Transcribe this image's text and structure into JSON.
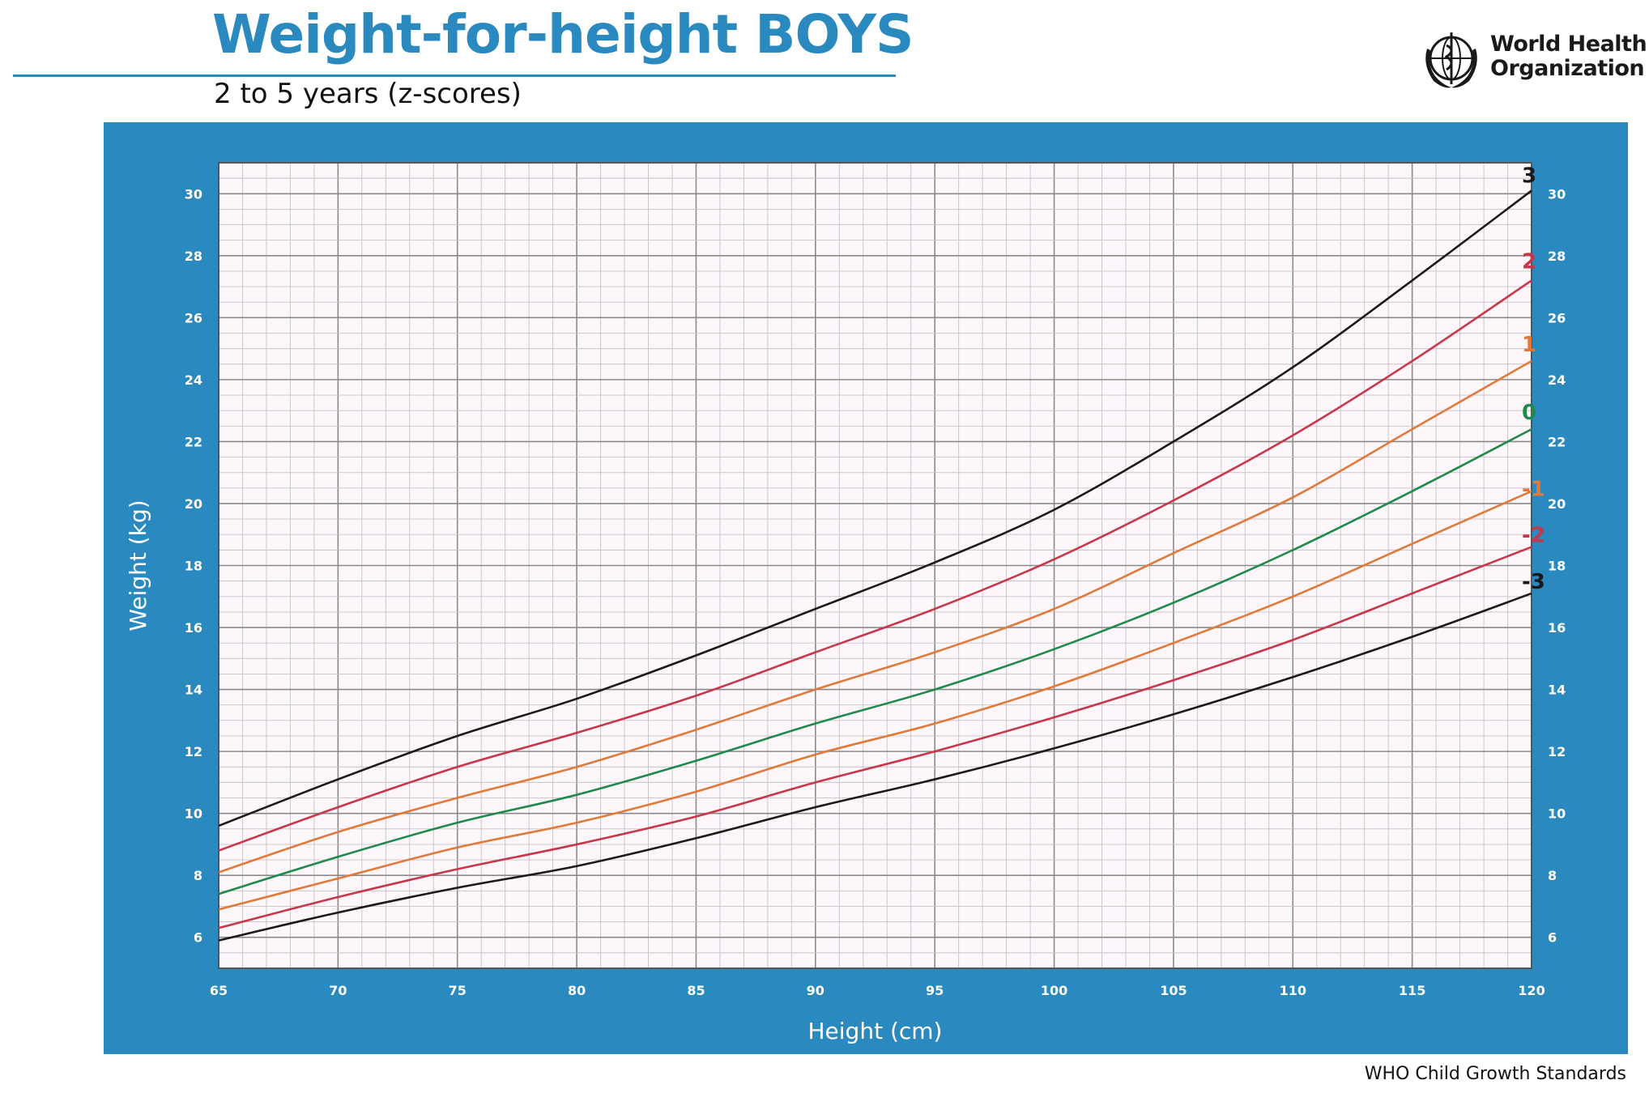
{
  "header": {
    "title": "Weight-for-height BOYS",
    "subtitle": "2 to 5 years (z-scores)",
    "logo_text_line1": "World Health",
    "logo_text_line2": "Organization",
    "logo_icon": "who-emblem-icon"
  },
  "footer": {
    "text": "WHO Child Growth Standards"
  },
  "colors": {
    "brand_blue": "#2a8ac0",
    "plot_background": "#fdf7fb",
    "z3": "#1a1a1a",
    "z2": "#c8364a",
    "z1": "#e07a3a",
    "z0": "#1f8a4c",
    "zm1": "#e07a3a",
    "zm2": "#c8364a",
    "zm3": "#1a1a1a"
  },
  "chart_data": {
    "type": "line",
    "title": "Weight-for-height BOYS",
    "subtitle": "2 to 5 years (z-scores)",
    "xlabel": "Height (cm)",
    "ylabel": "Weight (kg)",
    "xlim": [
      65,
      120
    ],
    "ylim": [
      5,
      31
    ],
    "x_ticks": [
      65,
      70,
      75,
      80,
      85,
      90,
      95,
      100,
      105,
      110,
      115,
      120
    ],
    "y_ticks": [
      6,
      8,
      10,
      12,
      14,
      16,
      18,
      20,
      22,
      24,
      26,
      28,
      30
    ],
    "grid": true,
    "y_axis_both_sides": true,
    "series_labels_position": "right-end",
    "x": [
      65,
      70,
      75,
      80,
      85,
      90,
      95,
      100,
      105,
      110,
      115,
      120
    ],
    "series": [
      {
        "name": "3",
        "color": "#1a1a1a",
        "values": [
          9.6,
          11.1,
          12.5,
          13.7,
          15.1,
          16.6,
          18.1,
          19.8,
          22.0,
          24.4,
          27.2,
          30.1
        ]
      },
      {
        "name": "2",
        "color": "#c8364a",
        "values": [
          8.8,
          10.2,
          11.5,
          12.6,
          13.8,
          15.2,
          16.6,
          18.2,
          20.1,
          22.2,
          24.6,
          27.2
        ]
      },
      {
        "name": "1",
        "color": "#e07a3a",
        "values": [
          8.1,
          9.4,
          10.5,
          11.5,
          12.7,
          14.0,
          15.2,
          16.6,
          18.4,
          20.2,
          22.4,
          24.6
        ]
      },
      {
        "name": "0",
        "color": "#1f8a4c",
        "values": [
          7.4,
          8.6,
          9.7,
          10.6,
          11.7,
          12.9,
          14.0,
          15.3,
          16.8,
          18.5,
          20.4,
          22.4
        ]
      },
      {
        "name": "-1",
        "color": "#e07a3a",
        "values": [
          6.9,
          7.9,
          8.9,
          9.7,
          10.7,
          11.9,
          12.9,
          14.1,
          15.5,
          17.0,
          18.7,
          20.4
        ]
      },
      {
        "name": "-2",
        "color": "#c8364a",
        "values": [
          6.3,
          7.3,
          8.2,
          9.0,
          9.9,
          11.0,
          12.0,
          13.1,
          14.3,
          15.6,
          17.1,
          18.6
        ]
      },
      {
        "name": "-3",
        "color": "#1a1a1a",
        "values": [
          5.9,
          6.8,
          7.6,
          8.3,
          9.2,
          10.2,
          11.1,
          12.1,
          13.2,
          14.4,
          15.7,
          17.1
        ]
      }
    ]
  }
}
